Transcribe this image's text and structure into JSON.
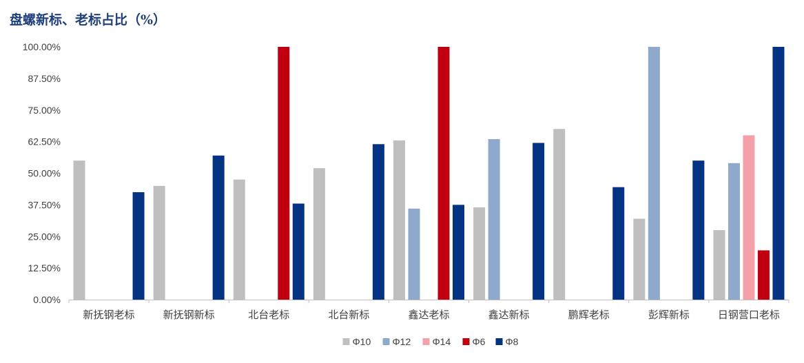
{
  "chart_data": {
    "type": "bar",
    "title": "盘螺新标、老标占比（%）",
    "categories": [
      "新抚钢老标",
      "新抚钢新标",
      "北台老标",
      "北台新标",
      "鑫达老标",
      "鑫达新标",
      "鹏辉老标",
      "彭辉新标",
      "日钢营口老标"
    ],
    "yticks": [
      "0.00%",
      "12.50%",
      "25.00%",
      "37.50%",
      "50.00%",
      "62.50%",
      "75.00%",
      "87.50%",
      "100.00%"
    ],
    "ylim": [
      0,
      100
    ],
    "grid": false,
    "legend_position": "bottom",
    "series": [
      {
        "name": "Φ10",
        "color": "#bfbfbf",
        "values": [
          55,
          45,
          47.5,
          52,
          63,
          36.5,
          67.5,
          32,
          27.5
        ]
      },
      {
        "name": "Φ12",
        "color": "#8ea9cc",
        "values": [
          0,
          0,
          0,
          0,
          36,
          63.5,
          0,
          100,
          54
        ]
      },
      {
        "name": "Φ14",
        "color": "#f4a0a8",
        "values": [
          0,
          0,
          0,
          0,
          0,
          0,
          0,
          0,
          65
        ]
      },
      {
        "name": "Φ6",
        "color": "#c00010",
        "values": [
          0,
          0,
          100,
          0,
          100,
          0,
          0,
          0,
          19.5
        ]
      },
      {
        "name": "Φ8",
        "color": "#033382",
        "values": [
          42.5,
          57,
          38,
          61.5,
          37.5,
          62,
          44.5,
          55,
          100
        ]
      }
    ]
  }
}
